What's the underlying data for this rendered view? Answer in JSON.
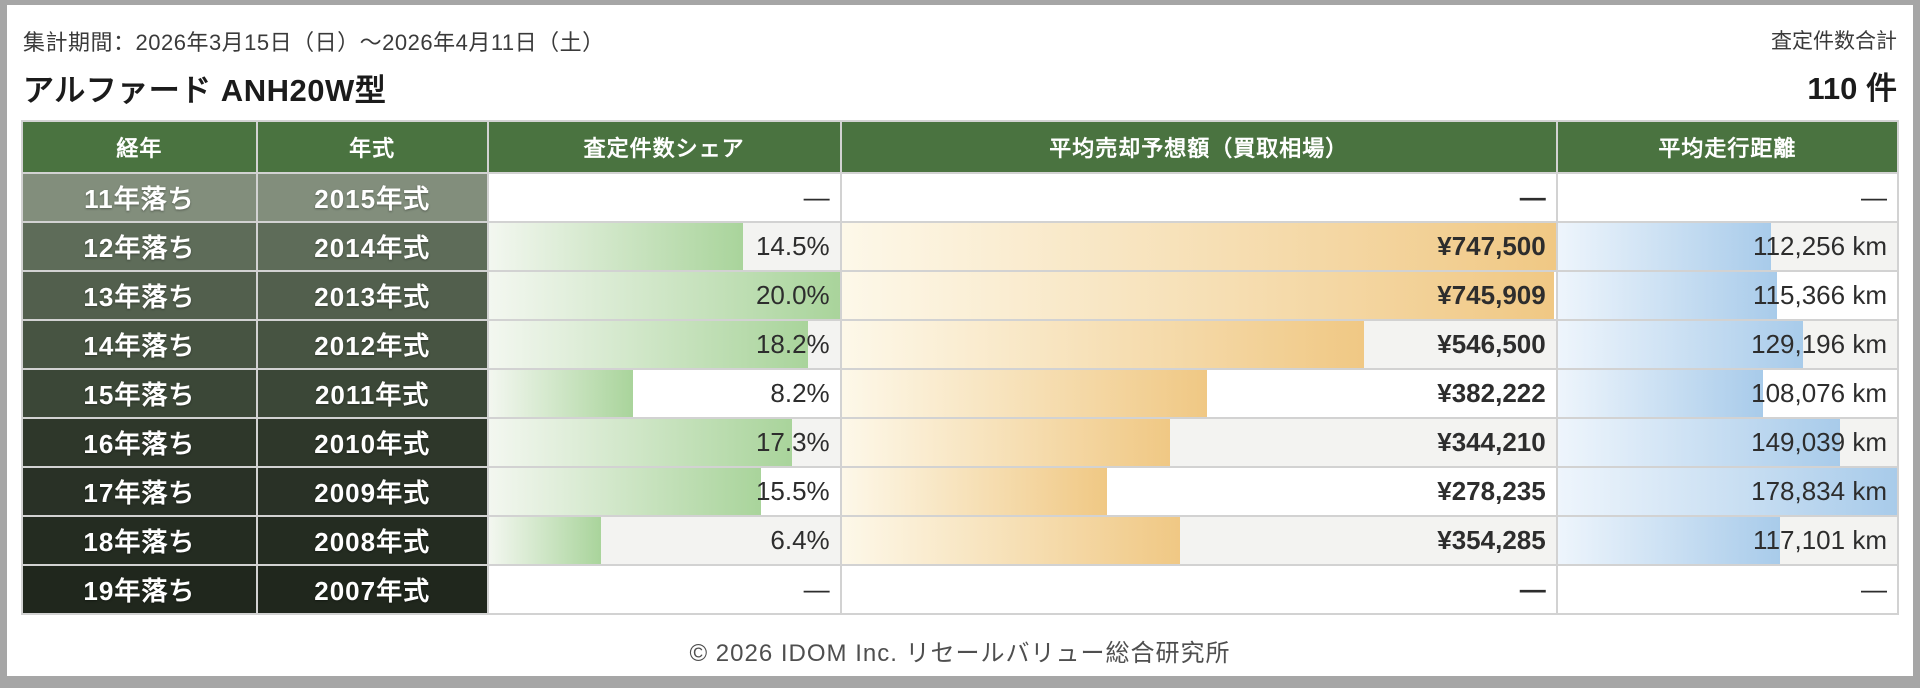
{
  "header": {
    "period": "集計期間：2026年3月15日（日）〜2026年4月11日（土）",
    "title": "アルファード ANH20W型",
    "total_label": "査定件数合計",
    "total_value": "110 件"
  },
  "table": {
    "columns": [
      "経年",
      "年式",
      "査定件数シェア",
      "平均売却予想額（買取相場）",
      "平均走行距離"
    ],
    "share_max": 20.0,
    "price_max": 747500,
    "mileage_max": 178834,
    "rows": [
      {
        "age": "11年落ち",
        "year": "2015年式",
        "share": null,
        "share_label": "—",
        "price": null,
        "price_label": "—",
        "mileage": null,
        "mileage_label": "—",
        "row_color": "#828e7c"
      },
      {
        "age": "12年落ち",
        "year": "2014年式",
        "share": 14.5,
        "share_label": "14.5%",
        "price": 747500,
        "price_label": "¥747,500",
        "mileage": 112256,
        "mileage_label": "112,256 km",
        "row_color": "#5e6c59"
      },
      {
        "age": "13年落ち",
        "year": "2013年式",
        "share": 20.0,
        "share_label": "20.0%",
        "price": 745909,
        "price_label": "¥745,909",
        "mileage": 115366,
        "mileage_label": "115,366 km",
        "row_color": "#525f4d"
      },
      {
        "age": "14年落ち",
        "year": "2012年式",
        "share": 18.2,
        "share_label": "18.2%",
        "price": 546500,
        "price_label": "¥546,500",
        "mileage": 129196,
        "mileage_label": "129,196 km",
        "row_color": "#475442"
      },
      {
        "age": "15年落ち",
        "year": "2011年式",
        "share": 8.2,
        "share_label": "8.2%",
        "price": 382222,
        "price_label": "¥382,222",
        "mileage": 108076,
        "mileage_label": "108,076 km",
        "row_color": "#3b4737"
      },
      {
        "age": "16年落ち",
        "year": "2010年式",
        "share": 17.3,
        "share_label": "17.3%",
        "price": 344210,
        "price_label": "¥344,210",
        "mileage": 149039,
        "mileage_label": "149,039 km",
        "row_color": "#2e372a"
      },
      {
        "age": "17年落ち",
        "year": "2009年式",
        "share": 15.5,
        "share_label": "15.5%",
        "price": 278235,
        "price_label": "¥278,235",
        "mileage": 178834,
        "mileage_label": "178,834 km",
        "row_color": "#293126"
      },
      {
        "age": "18年落ち",
        "year": "2008年式",
        "share": 6.4,
        "share_label": "6.4%",
        "price": 354285,
        "price_label": "¥354,285",
        "mileage": 117101,
        "mileage_label": "117,101 km",
        "row_color": "#242c21"
      },
      {
        "age": "19年落ち",
        "year": "2007年式",
        "share": null,
        "share_label": "—",
        "price": null,
        "price_label": "—",
        "mileage": null,
        "mileage_label": "—",
        "row_color": "#20271d"
      }
    ]
  },
  "footer": {
    "copyright": "© 2026 IDOM Inc. リセールバリュー総合研究所"
  },
  "colors": {
    "header_green": "#4a7340",
    "stripe": "#f3f3f1",
    "share_bar_end": "#a9d49b",
    "price_bar_end": "#f0c884",
    "mileage_bar_end": "#a8cbea",
    "frame_gray": "#a6a6a6"
  },
  "chart_data": {
    "type": "table",
    "title": "アルファード ANH20W型",
    "subtitle": "集計期間：2026年3月15日（日）〜2026年4月11日（土）",
    "total_assessments": 110,
    "categories": [
      "2015年式",
      "2014年式",
      "2013年式",
      "2012年式",
      "2011年式",
      "2010年式",
      "2009年式",
      "2008年式",
      "2007年式"
    ],
    "age_labels": [
      "11年落ち",
      "12年落ち",
      "13年落ち",
      "14年落ち",
      "15年落ち",
      "16年落ち",
      "17年落ち",
      "18年落ち",
      "19年落ち"
    ],
    "series": [
      {
        "name": "査定件数シェア",
        "unit": "%",
        "max": 20.0,
        "values": [
          null,
          14.5,
          20.0,
          18.2,
          8.2,
          17.3,
          15.5,
          6.4,
          null
        ]
      },
      {
        "name": "平均売却予想額（買取相場）",
        "unit": "¥",
        "max": 747500,
        "values": [
          null,
          747500,
          745909,
          546500,
          382222,
          344210,
          278235,
          354285,
          null
        ]
      },
      {
        "name": "平均走行距離",
        "unit": "km",
        "max": 178834,
        "values": [
          null,
          112256,
          115366,
          129196,
          108076,
          149039,
          178834,
          117101,
          null
        ]
      }
    ],
    "legend_position": "none",
    "grid": false
  }
}
